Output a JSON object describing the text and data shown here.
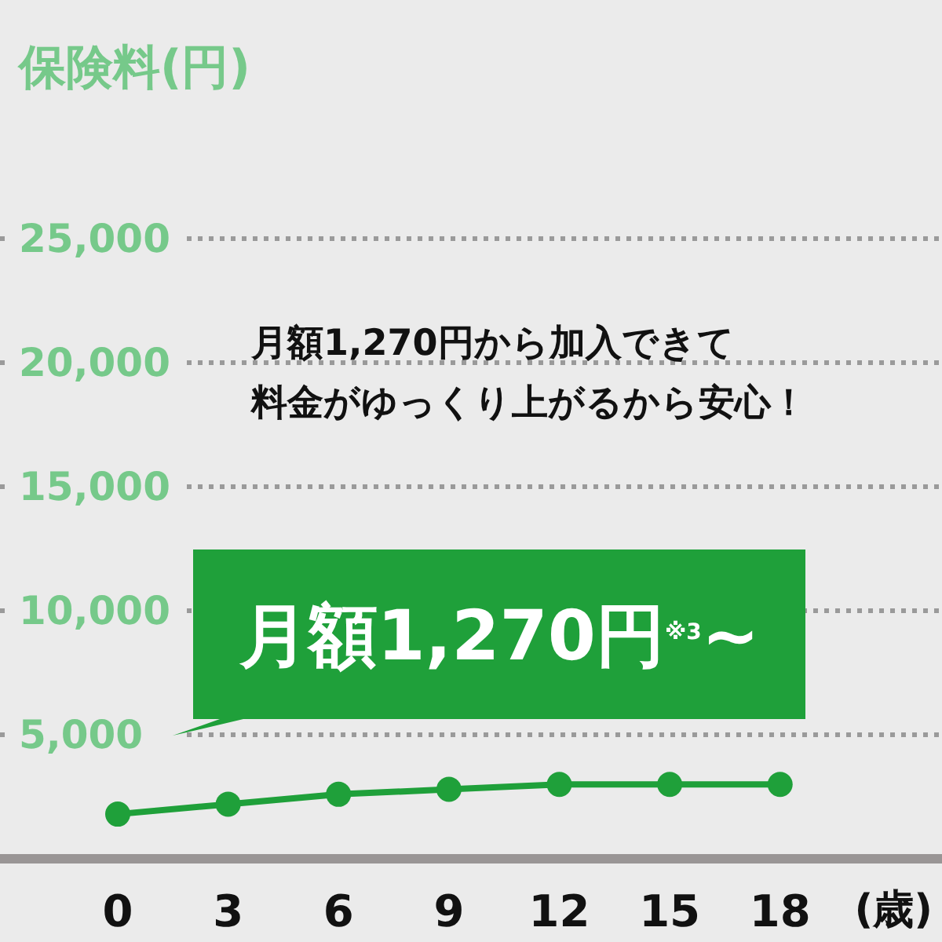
{
  "chart_data": {
    "type": "line",
    "ylabel": "保険料(円)",
    "xlabel": "(歳)",
    "x": [
      0,
      3,
      6,
      9,
      12,
      15,
      18
    ],
    "series": [
      {
        "color": "#1fa03a",
        "values": [
          1800,
          2200,
          2600,
          2800,
          3000,
          3000,
          3000
        ]
      }
    ],
    "xlim": [
      -3.2,
      22.4
    ],
    "xticks": [
      0,
      3,
      6,
      9,
      12,
      15,
      18
    ],
    "ylim": [
      0,
      25000
    ],
    "yticks": [
      {
        "value": 5000,
        "label": "5,000"
      },
      {
        "value": 10000,
        "label": "10,000"
      },
      {
        "value": 15000,
        "label": "15,000"
      },
      {
        "value": 20000,
        "label": "20,000"
      },
      {
        "value": 25000,
        "label": "25,000"
      }
    ],
    "grid": "y",
    "marker": "circle",
    "line_style": "solid",
    "annotations": [
      {
        "text": "月額1,270円$^{※3}$~",
        "x": 0,
        "y": 1800
      },
      "月額1,270円から加入できて",
      "料金がゆっくり上がるから安心！"
    ]
  }
}
